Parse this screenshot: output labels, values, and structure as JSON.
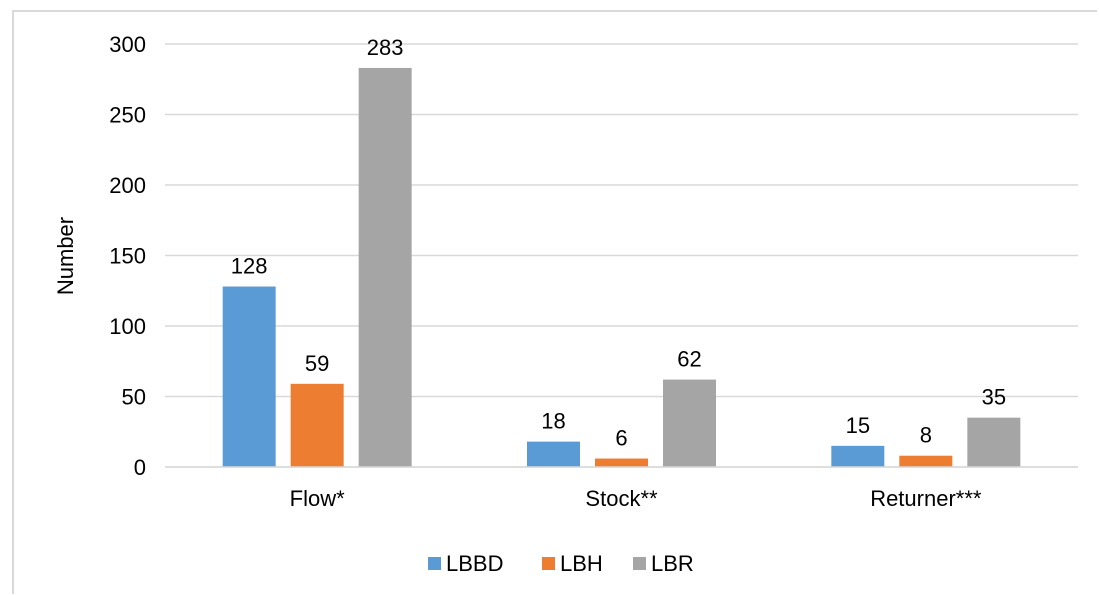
{
  "chart_data": {
    "type": "bar",
    "title": "",
    "xlabel": "",
    "ylabel": "Number",
    "categories": [
      "Flow*",
      "Stock**",
      "Returner***"
    ],
    "series": [
      {
        "name": "LBBD",
        "color": "#5b9bd5",
        "values": [
          128,
          18,
          15
        ]
      },
      {
        "name": "LBH",
        "color": "#ed7d31",
        "values": [
          59,
          6,
          8
        ]
      },
      {
        "name": "LBR",
        "color": "#a5a5a5",
        "values": [
          283,
          62,
          35
        ]
      }
    ],
    "ylim": [
      0,
      300
    ],
    "yticks": [
      0,
      50,
      100,
      150,
      200,
      250,
      300
    ],
    "grid": true,
    "gridline_color": "#d9d9d9",
    "data_labels": true,
    "legend_position": "bottom"
  }
}
